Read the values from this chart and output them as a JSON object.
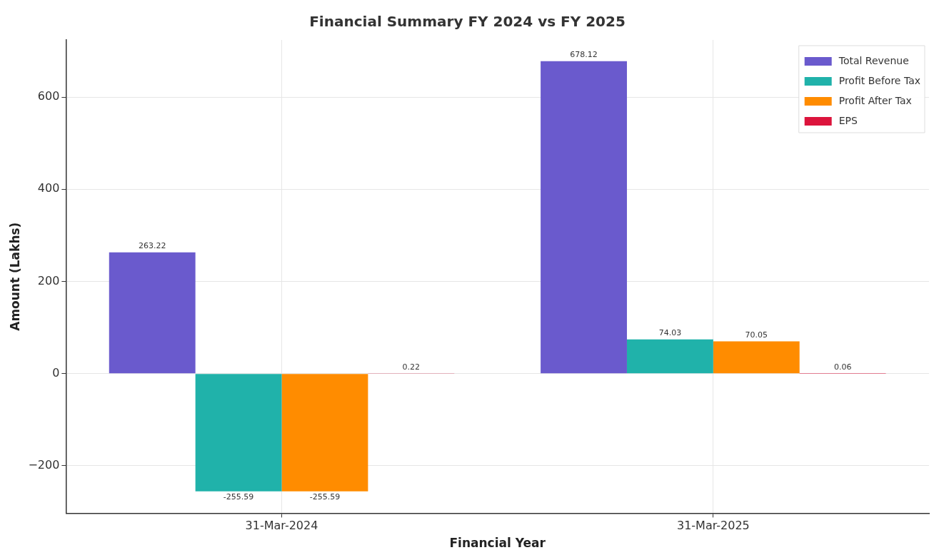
{
  "chart_data": {
    "type": "bar",
    "title": "Financial Summary FY 2024 vs FY 2025",
    "xlabel": "Financial Year",
    "ylabel": "Amount (Lakhs)",
    "categories": [
      "31-Mar-2024",
      "31-Mar-2025"
    ],
    "series": [
      {
        "name": "Total Revenue",
        "color": "#6a5acd",
        "values": [
          263.22,
          678.12
        ]
      },
      {
        "name": "Profit Before Tax",
        "color": "#20b2aa",
        "values": [
          -255.59,
          74.03
        ]
      },
      {
        "name": "Profit After Tax",
        "color": "#ff8c00",
        "values": [
          -255.59,
          70.05
        ]
      },
      {
        "name": "EPS",
        "color": "#dc143c",
        "values": [
          0.22,
          0.06
        ]
      }
    ],
    "ylim": [
      -303,
      724
    ],
    "yticks": [
      {
        "value": -200,
        "label": "−200"
      },
      0,
      200,
      400,
      600
    ],
    "grid": true,
    "legend": "top right",
    "data_labels": true
  }
}
